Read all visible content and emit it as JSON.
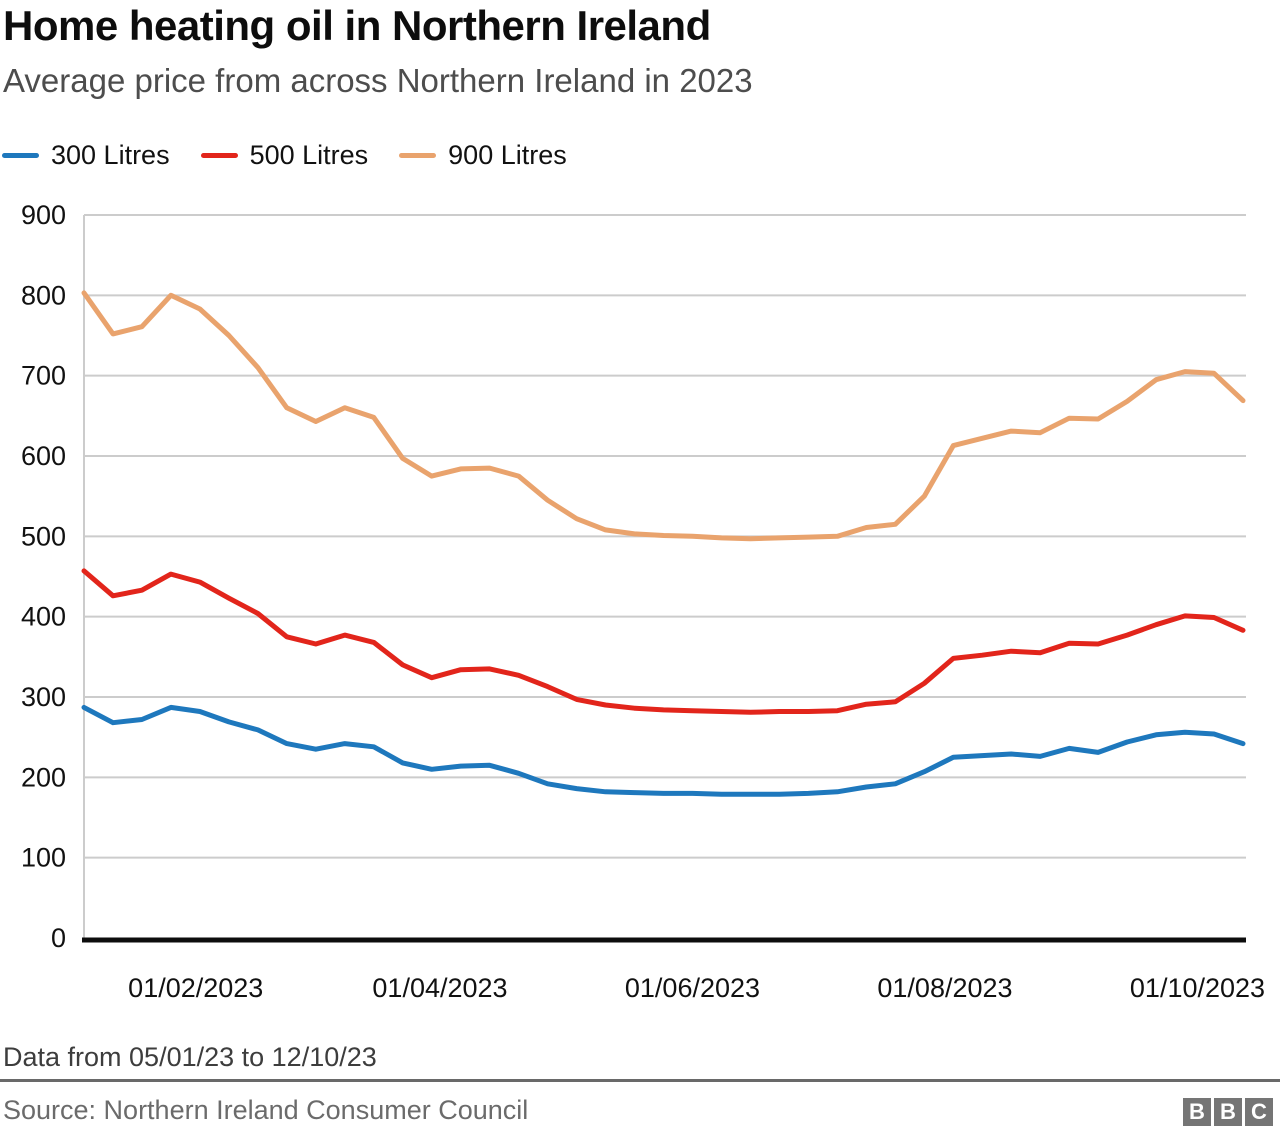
{
  "header": {
    "title": "Home heating oil in Northern Ireland",
    "subtitle": "Average price from across Northern Ireland in 2023"
  },
  "footer": {
    "note": "Data from 05/01/23 to 12/10/23",
    "source": "Source: Northern Ireland Consumer Council",
    "logo_letters": [
      "B",
      "B",
      "C"
    ]
  },
  "colors": {
    "series_300": "#1e78bd",
    "series_500": "#e2251b",
    "series_900": "#e9a36d",
    "gridline": "#cccccc",
    "axis": "#0d0d0d",
    "tick_label": "#111111"
  },
  "chart_data": {
    "type": "line",
    "title": "Home heating oil in Northern Ireland",
    "subtitle": "Average price from across Northern Ireland in 2023",
    "xlabel": "",
    "ylabel": "",
    "x_start_date": "05/01/23",
    "x_end_date": "12/10/23",
    "x_interval": "weekly",
    "n_points": 41,
    "ylim": [
      0,
      900
    ],
    "grid": true,
    "legend_position": "top-left",
    "y_ticks": [
      0,
      100,
      200,
      300,
      400,
      500,
      600,
      700,
      800,
      900
    ],
    "x_ticks": [
      {
        "label": "01/02/2023",
        "week_index": 3.857
      },
      {
        "label": "01/04/2023",
        "week_index": 12.286
      },
      {
        "label": "01/06/2023",
        "week_index": 21.0
      },
      {
        "label": "01/08/2023",
        "week_index": 29.714
      },
      {
        "label": "01/10/2023",
        "week_index": 38.429
      }
    ],
    "series": [
      {
        "name": "300 Litres",
        "color": "#1e78bd",
        "values": [
          287,
          268,
          272,
          287,
          282,
          269,
          259,
          242,
          235,
          242,
          238,
          218,
          210,
          214,
          215,
          205,
          192,
          186,
          182,
          181,
          180,
          180,
          179,
          179,
          179,
          180,
          182,
          188,
          192,
          207,
          225,
          227,
          229,
          226,
          236,
          231,
          244,
          253,
          256,
          254,
          242
        ]
      },
      {
        "name": "500 Litres",
        "color": "#e2251b",
        "values": [
          457,
          426,
          433,
          453,
          443,
          423,
          404,
          375,
          366,
          377,
          368,
          340,
          324,
          334,
          335,
          327,
          313,
          297,
          290,
          286,
          284,
          283,
          282,
          281,
          282,
          282,
          283,
          291,
          294,
          317,
          348,
          352,
          357,
          355,
          367,
          366,
          377,
          390,
          401,
          399,
          383
        ]
      },
      {
        "name": "900 Litres",
        "color": "#e9a36d",
        "values": [
          803,
          752,
          761,
          800,
          783,
          750,
          710,
          660,
          643,
          660,
          648,
          597,
          575,
          584,
          585,
          575,
          545,
          522,
          508,
          503,
          501,
          500,
          498,
          497,
          498,
          499,
          500,
          511,
          515,
          550,
          613,
          622,
          631,
          629,
          647,
          646,
          668,
          695,
          705,
          703,
          669
        ]
      }
    ]
  }
}
